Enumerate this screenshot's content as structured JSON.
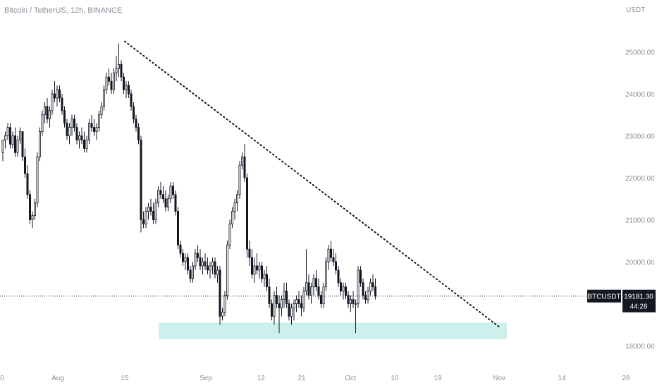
{
  "header": {
    "title": "Bitcoin / TetherUS, 12h, BINANCE",
    "unit": "USDT"
  },
  "chart_data": {
    "type": "candlestick",
    "symbol": "BTCUSDT",
    "ylim": [
      17700,
      25800
    ],
    "y_ticks": [
      "25000.00",
      "24000.00",
      "23000.00",
      "22000.00",
      "21000.00",
      "20000.00",
      "19000.00",
      "18000.00"
    ],
    "x_ticks": [
      "0",
      "Aug",
      "15",
      "Sep",
      "12",
      "21",
      "Oct",
      "10",
      "19",
      "Nov",
      "14",
      "28"
    ],
    "price_tag": {
      "label": "BTCUSDT",
      "price": "19181.30",
      "countdown": "44:28",
      "value": 19181.3
    },
    "candles": [
      [
        22600,
        22900,
        22400,
        22900
      ],
      [
        22900,
        23100,
        22700,
        23000
      ],
      [
        23000,
        23300,
        22900,
        23200
      ],
      [
        23200,
        23300,
        22700,
        22800
      ],
      [
        22800,
        23100,
        22700,
        23000
      ],
      [
        23000,
        23200,
        22500,
        22600
      ],
      [
        22600,
        23000,
        22500,
        22900
      ],
      [
        22900,
        23200,
        22800,
        23100
      ],
      [
        23100,
        23100,
        22400,
        22500
      ],
      [
        22500,
        22700,
        22000,
        22100
      ],
      [
        22100,
        22300,
        21500,
        21600
      ],
      [
        21600,
        21700,
        20900,
        21000
      ],
      [
        21000,
        21200,
        20800,
        21100
      ],
      [
        21100,
        21500,
        21000,
        21400
      ],
      [
        21400,
        22600,
        21300,
        22500
      ],
      [
        22500,
        23200,
        22400,
        23100
      ],
      [
        23100,
        23600,
        23000,
        23500
      ],
      [
        23500,
        23800,
        23300,
        23700
      ],
      [
        23700,
        23900,
        23300,
        23400
      ],
      [
        23400,
        23700,
        23200,
        23600
      ],
      [
        23600,
        24100,
        23500,
        24000
      ],
      [
        24000,
        24300,
        23800,
        23900
      ],
      [
        23900,
        24200,
        23700,
        24100
      ],
      [
        24100,
        24200,
        23800,
        23900
      ],
      [
        23900,
        24000,
        23500,
        23600
      ],
      [
        23600,
        23700,
        23200,
        23300
      ],
      [
        23300,
        23400,
        22900,
        23000
      ],
      [
        23000,
        23300,
        22800,
        23200
      ],
      [
        23200,
        23500,
        23000,
        23400
      ],
      [
        23400,
        23500,
        23100,
        23200
      ],
      [
        23200,
        23300,
        22800,
        22900
      ],
      [
        22900,
        23100,
        22700,
        23000
      ],
      [
        23000,
        23200,
        22800,
        22900
      ],
      [
        22900,
        23100,
        22600,
        22700
      ],
      [
        22700,
        23000,
        22600,
        22900
      ],
      [
        22900,
        23400,
        22800,
        23300
      ],
      [
        23300,
        23500,
        23100,
        23200
      ],
      [
        23200,
        23400,
        23000,
        23100
      ],
      [
        23100,
        23300,
        22900,
        23200
      ],
      [
        23200,
        23600,
        23100,
        23500
      ],
      [
        23500,
        23800,
        23400,
        23700
      ],
      [
        23700,
        24200,
        23600,
        24100
      ],
      [
        24100,
        24500,
        24000,
        24400
      ],
      [
        24400,
        24600,
        24200,
        24300
      ],
      [
        24300,
        24500,
        24000,
        24100
      ],
      [
        24100,
        24600,
        24000,
        24500
      ],
      [
        24500,
        24900,
        24300,
        24600
      ],
      [
        24600,
        25200,
        24400,
        24700
      ],
      [
        24700,
        24800,
        24300,
        24400
      ],
      [
        24400,
        24500,
        24000,
        24100
      ],
      [
        24100,
        24300,
        23900,
        24200
      ],
      [
        24200,
        24300,
        23900,
        24000
      ],
      [
        24000,
        24100,
        23600,
        23700
      ],
      [
        23700,
        23800,
        23300,
        23400
      ],
      [
        23400,
        23500,
        23100,
        23200
      ],
      [
        23200,
        23300,
        22800,
        22900
      ],
      [
        22900,
        23000,
        20700,
        21000
      ],
      [
        21000,
        21200,
        20800,
        20900
      ],
      [
        20900,
        21300,
        20800,
        21200
      ],
      [
        21200,
        21400,
        21000,
        21300
      ],
      [
        21300,
        21500,
        21100,
        21200
      ],
      [
        21200,
        21400,
        20900,
        21000
      ],
      [
        21000,
        21500,
        20900,
        21400
      ],
      [
        21400,
        21800,
        21300,
        21700
      ],
      [
        21700,
        21900,
        21500,
        21600
      ],
      [
        21600,
        21800,
        21400,
        21500
      ],
      [
        21500,
        21700,
        21200,
        21300
      ],
      [
        21300,
        21600,
        21200,
        21500
      ],
      [
        21500,
        21900,
        21400,
        21800
      ],
      [
        21800,
        21900,
        21500,
        21600
      ],
      [
        21600,
        21700,
        21100,
        21200
      ],
      [
        21200,
        21300,
        20300,
        20400
      ],
      [
        20400,
        20500,
        20100,
        20200
      ],
      [
        20200,
        20300,
        19900,
        20000
      ],
      [
        20000,
        20200,
        19800,
        20100
      ],
      [
        20100,
        20200,
        19700,
        19800
      ],
      [
        19800,
        19900,
        19500,
        19600
      ],
      [
        19600,
        20000,
        19500,
        19900
      ],
      [
        19900,
        20300,
        19800,
        20200
      ],
      [
        20200,
        20400,
        20000,
        20100
      ],
      [
        20100,
        20300,
        19800,
        19900
      ],
      [
        19900,
        20100,
        19700,
        20000
      ],
      [
        20000,
        20200,
        19800,
        19900
      ],
      [
        19900,
        20100,
        19700,
        19800
      ],
      [
        19800,
        20000,
        19600,
        19900
      ],
      [
        19900,
        20100,
        19700,
        20000
      ],
      [
        20000,
        20100,
        19600,
        19700
      ],
      [
        19700,
        19900,
        19500,
        19800
      ],
      [
        19800,
        19900,
        18500,
        18700
      ],
      [
        18700,
        18900,
        18600,
        18800
      ],
      [
        18800,
        19300,
        18700,
        19200
      ],
      [
        19200,
        20500,
        19100,
        20400
      ],
      [
        20400,
        21000,
        20300,
        20900
      ],
      [
        20900,
        21300,
        20800,
        21200
      ],
      [
        21200,
        21500,
        21000,
        21400
      ],
      [
        21400,
        21700,
        21200,
        21600
      ],
      [
        21600,
        22400,
        21500,
        22300
      ],
      [
        22300,
        22600,
        22200,
        22500
      ],
      [
        22500,
        22800,
        21900,
        22000
      ],
      [
        22000,
        22100,
        20100,
        20300
      ],
      [
        20300,
        20500,
        19900,
        20100
      ],
      [
        20100,
        20300,
        19600,
        19700
      ],
      [
        19700,
        20100,
        19500,
        19900
      ],
      [
        19900,
        20200,
        19700,
        19800
      ],
      [
        19800,
        20000,
        19600,
        19900
      ],
      [
        19900,
        20000,
        19500,
        19600
      ],
      [
        19600,
        19800,
        19400,
        19700
      ],
      [
        19700,
        19900,
        19300,
        19400
      ],
      [
        19400,
        19600,
        18900,
        19000
      ],
      [
        19000,
        19100,
        18600,
        18700
      ],
      [
        18700,
        19300,
        18500,
        19200
      ],
      [
        19200,
        19400,
        18900,
        19000
      ],
      [
        19000,
        19200,
        18300,
        18900
      ],
      [
        18900,
        19200,
        18700,
        19100
      ],
      [
        19100,
        19500,
        18900,
        19300
      ],
      [
        19300,
        19500,
        18900,
        19000
      ],
      [
        19000,
        19100,
        18600,
        18700
      ],
      [
        18700,
        19000,
        18500,
        18900
      ],
      [
        18900,
        19100,
        18600,
        19000
      ],
      [
        19000,
        19200,
        18800,
        19100
      ],
      [
        19100,
        19300,
        18900,
        19000
      ],
      [
        19000,
        19200,
        18700,
        18900
      ],
      [
        18900,
        19400,
        18800,
        19300
      ],
      [
        19300,
        20300,
        19200,
        19500
      ],
      [
        19500,
        19700,
        19100,
        19200
      ],
      [
        19200,
        19500,
        19000,
        19400
      ],
      [
        19400,
        19700,
        19200,
        19600
      ],
      [
        19600,
        19800,
        19300,
        19400
      ],
      [
        19400,
        19600,
        19100,
        19200
      ],
      [
        19200,
        19300,
        18900,
        19000
      ],
      [
        19000,
        19500,
        18900,
        19400
      ],
      [
        19400,
        20100,
        19300,
        20000
      ],
      [
        20000,
        20400,
        19800,
        20300
      ],
      [
        20300,
        20500,
        20000,
        20100
      ],
      [
        20100,
        20300,
        19900,
        20000
      ],
      [
        20000,
        20200,
        19700,
        19800
      ],
      [
        19800,
        19900,
        19400,
        19500
      ],
      [
        19500,
        19600,
        19200,
        19300
      ],
      [
        19300,
        19500,
        19100,
        19400
      ],
      [
        19400,
        19500,
        19100,
        19200
      ],
      [
        19200,
        19300,
        18900,
        19000
      ],
      [
        19000,
        19200,
        18800,
        19100
      ],
      [
        19100,
        19300,
        18900,
        19000
      ],
      [
        19000,
        19100,
        18300,
        19000
      ],
      [
        19000,
        19900,
        18900,
        19800
      ],
      [
        19800,
        19900,
        19400,
        19500
      ],
      [
        19500,
        19600,
        19100,
        19200
      ],
      [
        19200,
        19300,
        19000,
        19100
      ],
      [
        19100,
        19400,
        19000,
        19300
      ],
      [
        19300,
        19600,
        19200,
        19500
      ],
      [
        19500,
        19700,
        19300,
        19400
      ],
      [
        19400,
        19600,
        19100,
        19181.3
      ]
    ],
    "support_zone": {
      "low": 18150,
      "high": 18550
    },
    "trendline": {
      "from_price": 25250,
      "to_price": 18450,
      "style": "dotted"
    }
  }
}
